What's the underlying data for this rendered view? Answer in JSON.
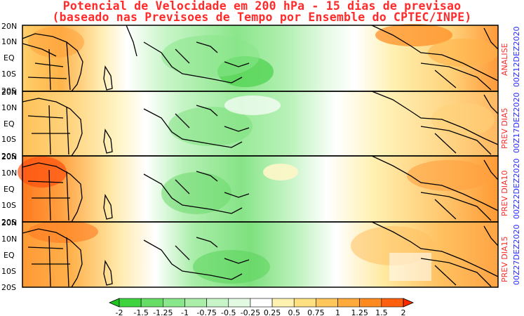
{
  "title_line1": "Potencial de Velocidade em 200 hPa - 15 dias de previsao",
  "title_line2": "(baseado nas Previsoes de Tempo por Ensemble do CPTEC/INPE)",
  "lat_labels": [
    "20N",
    "10N",
    "EQ",
    "10S",
    "20S"
  ],
  "panels": [
    {
      "label": "ANALISE",
      "date": "00Z12DEZ2020"
    },
    {
      "label": "PREV DIA5",
      "date": "00Z17DEZ2020"
    },
    {
      "label": "PREV DIA10",
      "date": "00Z22DEZ2020"
    },
    {
      "label": "PREV DIA15",
      "date": "00Z27DEZ2020"
    }
  ],
  "colorbar": {
    "labels": [
      "-2",
      "-1.5",
      "-1.25",
      "-1",
      "-0.75",
      "-0.5",
      "-0.25",
      "0.25",
      "0.5",
      "0.75",
      "1",
      "1.25",
      "1.5",
      "2"
    ],
    "colors": [
      "#1fc41f",
      "#3fd33f",
      "#66dd66",
      "#8ae68a",
      "#aaeeaa",
      "#c8f5c8",
      "#e2fae2",
      "#ffffff",
      "#fff2b0",
      "#ffe080",
      "#ffc65c",
      "#ffaa3c",
      "#ff8a20",
      "#ff6010",
      "#ff2a00"
    ]
  }
}
